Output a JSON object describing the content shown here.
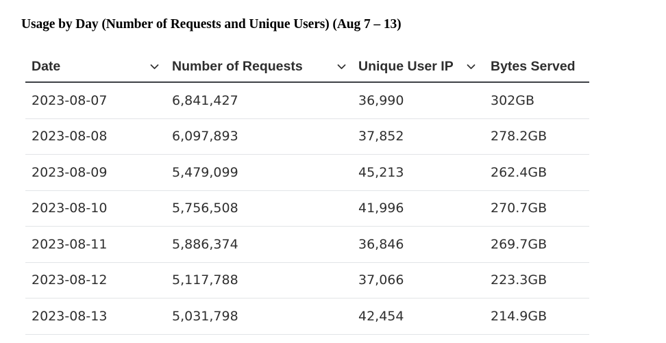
{
  "page": {
    "title": "Usage by Day (Number of Requests and Unique Users) (Aug 7 – 13)"
  },
  "table": {
    "columns": [
      {
        "label": "Date",
        "sortable": true,
        "icon": "chevron-down-icon"
      },
      {
        "label": "Number of Requests",
        "sortable": true,
        "icon": "chevron-down-icon"
      },
      {
        "label": "Unique User IP",
        "sortable": true,
        "icon": "chevron-down-icon"
      },
      {
        "label": "Bytes Served",
        "sortable": false
      }
    ],
    "rows": [
      [
        "2023-08-07",
        "6,841,427",
        "36,990",
        "302GB"
      ],
      [
        "2023-08-08",
        "6,097,893",
        "37,852",
        "278.2GB"
      ],
      [
        "2023-08-09",
        "5,479,099",
        "45,213",
        "262.4GB"
      ],
      [
        "2023-08-10",
        "5,756,508",
        "41,996",
        "270.7GB"
      ],
      [
        "2023-08-11",
        "5,886,374",
        "36,846",
        "269.7GB"
      ],
      [
        "2023-08-12",
        "5,117,788",
        "37,066",
        "223.3GB"
      ],
      [
        "2023-08-13",
        "5,031,798",
        "42,454",
        "214.9GB"
      ]
    ]
  },
  "colors": {
    "header_rule": "#3c3f44",
    "row_divider": "#e2e4e7",
    "text": "#2f2f2f"
  }
}
